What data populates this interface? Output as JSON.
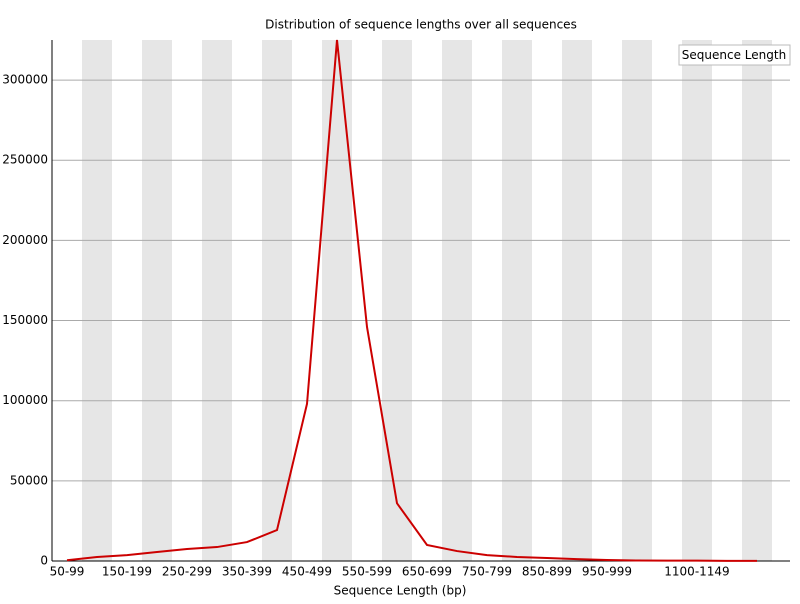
{
  "chart_data": {
    "type": "line",
    "title": "Distribution of sequence lengths over all sequences",
    "x_label": "Sequence Length (bp)",
    "categories": [
      "50-99",
      null,
      "150-199",
      null,
      "250-299",
      null,
      "350-399",
      null,
      "450-499",
      null,
      "550-599",
      null,
      "650-699",
      null,
      "750-799",
      null,
      "850-899",
      null,
      "950-999",
      null,
      null,
      "1100-1149",
      null,
      null
    ],
    "series": [
      {
        "name": "Sequence Length",
        "color": "#cc0000",
        "values": [
          500,
          2500,
          3700,
          5600,
          7500,
          8700,
          11800,
          19300,
          98000,
          325000,
          146000,
          36000,
          10000,
          6200,
          3700,
          2500,
          1900,
          1200,
          600,
          300,
          200,
          200,
          100,
          100
        ]
      }
    ],
    "ylim": [
      0,
      325000
    ],
    "yticks": [
      0,
      50000,
      100000,
      150000,
      200000,
      250000,
      300000
    ],
    "grid": true,
    "legend": "top-right"
  }
}
